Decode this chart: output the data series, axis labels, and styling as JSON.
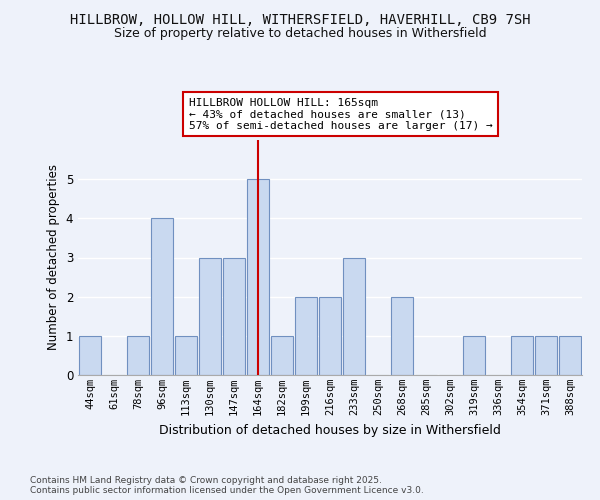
{
  "title": "HILLBROW, HOLLOW HILL, WITHERSFIELD, HAVERHILL, CB9 7SH",
  "subtitle": "Size of property relative to detached houses in Withersfield",
  "xlabel": "Distribution of detached houses by size in Withersfield",
  "ylabel": "Number of detached properties",
  "categories": [
    "44sqm",
    "61sqm",
    "78sqm",
    "96sqm",
    "113sqm",
    "130sqm",
    "147sqm",
    "164sqm",
    "182sqm",
    "199sqm",
    "216sqm",
    "233sqm",
    "250sqm",
    "268sqm",
    "285sqm",
    "302sqm",
    "319sqm",
    "336sqm",
    "354sqm",
    "371sqm",
    "388sqm"
  ],
  "values": [
    1,
    0,
    1,
    4,
    1,
    3,
    3,
    5,
    1,
    2,
    2,
    3,
    0,
    2,
    0,
    0,
    1,
    0,
    1,
    1,
    1
  ],
  "bar_color": "#c9d9f0",
  "bar_edge_color": "#7090c0",
  "highlight_index": 7,
  "highlight_line_color": "#cc0000",
  "annotation_text": "HILLBROW HOLLOW HILL: 165sqm\n← 43% of detached houses are smaller (13)\n57% of semi-detached houses are larger (17) →",
  "annotation_box_color": "#ffffff",
  "annotation_box_edge_color": "#cc0000",
  "ylim": [
    0,
    6
  ],
  "yticks": [
    0,
    1,
    2,
    3,
    4,
    5
  ],
  "background_color": "#eef2fa",
  "plot_bg_color": "#eef2fa",
  "grid_color": "#ffffff",
  "title_fontsize": 10,
  "subtitle_fontsize": 9,
  "annotation_fontsize": 8,
  "footer": "Contains HM Land Registry data © Crown copyright and database right 2025.\nContains public sector information licensed under the Open Government Licence v3.0.",
  "footer_fontsize": 6.5
}
